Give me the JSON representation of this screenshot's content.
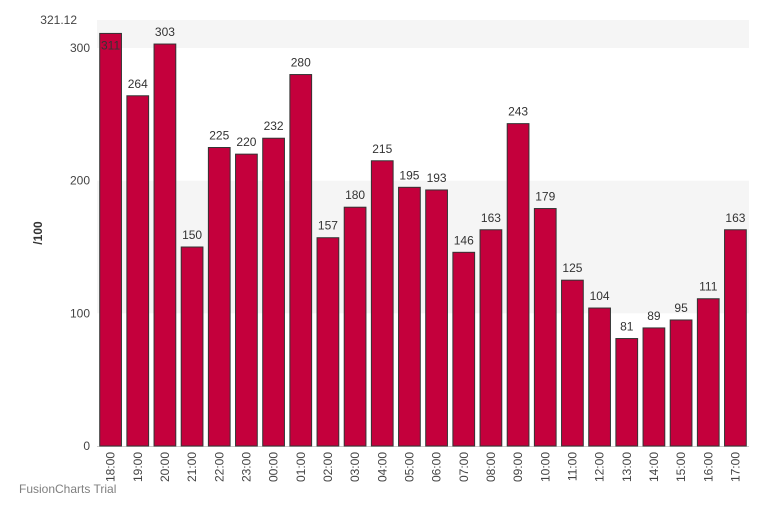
{
  "chart_data": {
    "type": "bar",
    "title": "",
    "xlabel": "",
    "ylabel": "/100",
    "ylim": [
      0,
      321.12
    ],
    "y_max_label": "321.12",
    "yticks": [
      0,
      100,
      200,
      300
    ],
    "grid": "alternating horizontal bands",
    "legend": "none",
    "categories": [
      "18:00",
      "19:00",
      "20:00",
      "21:00",
      "22:00",
      "23:00",
      "00:00",
      "01:00",
      "02:00",
      "03:00",
      "04:00",
      "05:00",
      "06:00",
      "07:00",
      "08:00",
      "09:00",
      "10:00",
      "11:00",
      "12:00",
      "13:00",
      "14:00",
      "15:00",
      "16:00",
      "17:00"
    ],
    "values": [
      311,
      264,
      303,
      150,
      225,
      220,
      232,
      280,
      157,
      180,
      215,
      195,
      193,
      146,
      163,
      243,
      179,
      125,
      104,
      81,
      89,
      95,
      111,
      163
    ],
    "bar_color": "#c4003c",
    "bar_border_color": "#333333",
    "band_color": "#f5f5f5"
  },
  "watermark": {
    "text": "FusionCharts Trial"
  }
}
